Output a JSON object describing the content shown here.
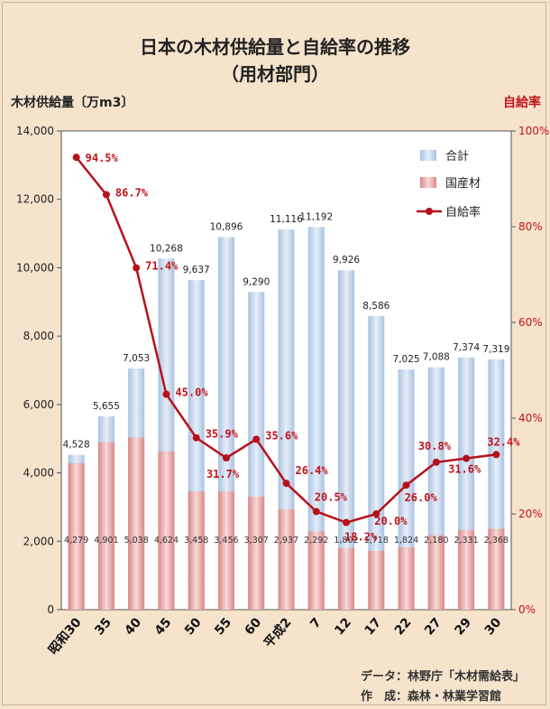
{
  "title_line1": "日本の木材供給量と自給率の推移",
  "title_line2": "（用材部門）",
  "footer": {
    "source": "データ：林野庁「木材需給表」",
    "author": "作　成：森林・林業学習館"
  },
  "colors": {
    "total": "#c8d8ec",
    "domestic": "#e8a3a3",
    "rate": "#b5121b",
    "rate_label": "#c0141c"
  },
  "chart_data": {
    "type": "bar",
    "title": "日本の木材供給量と自給率の推移（用材部門）",
    "ylabel": "木材供給量〔万m3〕",
    "y2label": "自給率",
    "ylim": [
      0,
      14000
    ],
    "y2lim": [
      0,
      100
    ],
    "yticks": [
      "0",
      "2,000",
      "4,000",
      "6,000",
      "8,000",
      "10,000",
      "12,000",
      "14,000"
    ],
    "y2ticks": [
      "0%",
      "20%",
      "40%",
      "60%",
      "80%",
      "100%"
    ],
    "grid": false,
    "legend_position": "top-right",
    "categories": [
      "昭和30",
      "35",
      "40",
      "45",
      "50",
      "55",
      "60",
      "平成2",
      "7",
      "12",
      "17",
      "22",
      "27",
      "29",
      "30"
    ],
    "series": [
      {
        "name": "合計",
        "type": "bar",
        "values": [
          4528,
          5655,
          7053,
          10268,
          9637,
          10896,
          9290,
          11116,
          11192,
          9926,
          8586,
          7025,
          7088,
          7374,
          7319
        ],
        "labels": [
          "4,528",
          "5,655",
          "7,053",
          "10,268",
          "9,637",
          "10,896",
          "9,290",
          "11,116",
          "11,192",
          "9,926",
          "8,586",
          "7,025",
          "7,088",
          "7,374",
          "7,319"
        ]
      },
      {
        "name": "国産材",
        "type": "bar",
        "values": [
          4279,
          4901,
          5038,
          4624,
          3458,
          3456,
          3307,
          2937,
          2292,
          1802,
          1718,
          1824,
          2180,
          2331,
          2368
        ],
        "labels": [
          "4,279",
          "4,901",
          "5,038",
          "4,624",
          "3,458",
          "3,456",
          "3,307",
          "2,937",
          "2,292",
          "1,802",
          "1,718",
          "1,824",
          "2,180",
          "2,331",
          "2,368"
        ]
      },
      {
        "name": "自給率",
        "type": "line",
        "axis": "right",
        "values": [
          94.5,
          86.7,
          71.4,
          45.0,
          35.9,
          31.7,
          35.6,
          26.4,
          20.5,
          18.2,
          20.0,
          26.0,
          30.8,
          31.6,
          32.4
        ],
        "labels": [
          "94.5%",
          "86.7%",
          "71.4%",
          "45.0%",
          "35.9%",
          "31.7%",
          "35.6%",
          "26.4%",
          "20.5%",
          "18.2%",
          "20.0%",
          "26.0%",
          "30.8%",
          "31.6%",
          "32.4%"
        ]
      }
    ]
  }
}
